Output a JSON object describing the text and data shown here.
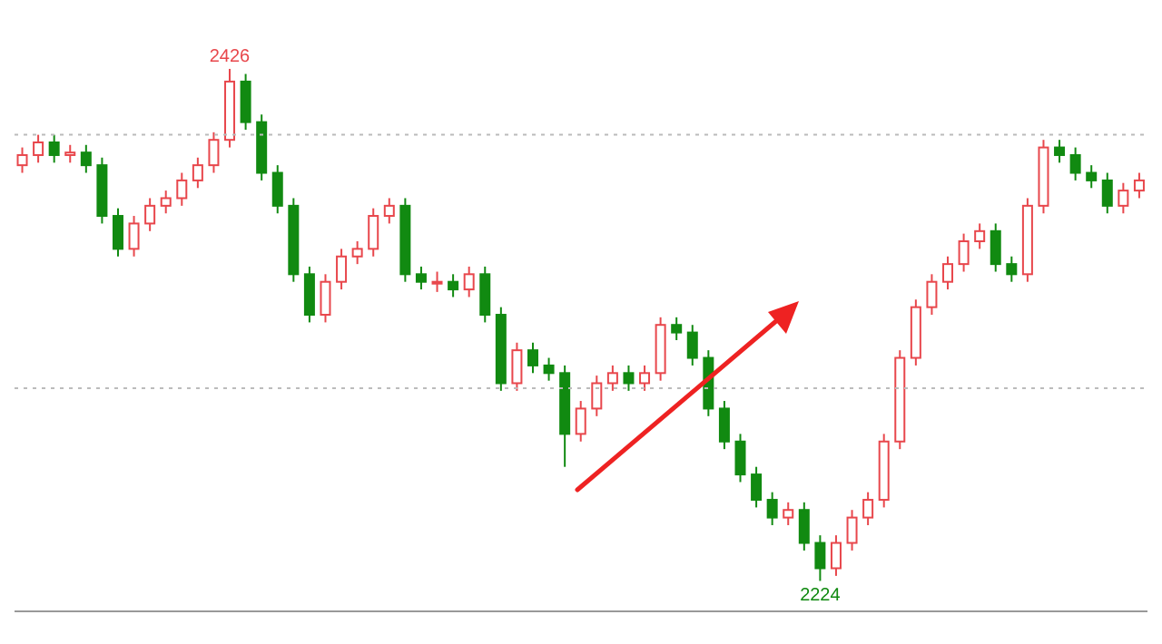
{
  "chart_data": {
    "type": "candlestick",
    "categories": [
      null,
      null,
      null,
      null,
      null,
      null,
      null,
      null,
      null,
      null,
      null,
      null,
      null,
      null,
      null,
      null,
      null,
      null,
      null,
      null,
      null,
      null,
      null,
      null,
      null,
      null,
      null,
      null,
      null,
      null,
      null,
      null,
      null,
      null,
      null,
      null,
      null,
      null,
      null,
      null,
      null,
      null,
      null,
      null,
      null,
      null,
      null,
      null,
      null,
      null,
      null,
      null,
      null,
      null,
      null,
      null,
      null,
      null,
      null,
      null,
      null,
      null,
      null,
      null,
      null,
      null,
      null,
      null,
      null,
      null,
      null
    ],
    "ohlc": [
      [
        2388,
        2395,
        2385,
        2392
      ],
      [
        2392,
        2400,
        2389,
        2397
      ],
      [
        2397,
        2400,
        2389,
        2392
      ],
      [
        2392,
        2396,
        2389,
        2393
      ],
      [
        2393,
        2396,
        2385,
        2388
      ],
      [
        2388,
        2391,
        2365,
        2368
      ],
      [
        2368,
        2371,
        2352,
        2355
      ],
      [
        2355,
        2368,
        2352,
        2365
      ],
      [
        2365,
        2375,
        2362,
        2372
      ],
      [
        2372,
        2378,
        2369,
        2375
      ],
      [
        2375,
        2385,
        2372,
        2382
      ],
      [
        2382,
        2391,
        2379,
        2388
      ],
      [
        2388,
        2401,
        2385,
        2398
      ],
      [
        2398,
        2426,
        2395,
        2421
      ],
      [
        2421,
        2424,
        2402,
        2405
      ],
      [
        2405,
        2408,
        2382,
        2385
      ],
      [
        2385,
        2388,
        2369,
        2372
      ],
      [
        2372,
        2375,
        2342,
        2345
      ],
      [
        2345,
        2348,
        2326,
        2329
      ],
      [
        2329,
        2345,
        2326,
        2342
      ],
      [
        2342,
        2355,
        2339,
        2352
      ],
      [
        2352,
        2358,
        2349,
        2355
      ],
      [
        2355,
        2371,
        2352,
        2368
      ],
      [
        2368,
        2375,
        2365,
        2372
      ],
      [
        2372,
        2375,
        2342,
        2345
      ],
      [
        2345,
        2348,
        2339,
        2342
      ],
      [
        2342,
        2346,
        2338,
        2342
      ],
      [
        2342,
        2345,
        2336,
        2339
      ],
      [
        2339,
        2348,
        2336,
        2345
      ],
      [
        2345,
        2348,
        2326,
        2329
      ],
      [
        2329,
        2332,
        2299,
        2302
      ],
      [
        2302,
        2318,
        2299,
        2315
      ],
      [
        2315,
        2318,
        2306,
        2309
      ],
      [
        2309,
        2312,
        2303,
        2306
      ],
      [
        2306,
        2309,
        2269,
        2282
      ],
      [
        2282,
        2295,
        2279,
        2292
      ],
      [
        2292,
        2305,
        2289,
        2302
      ],
      [
        2302,
        2309,
        2299,
        2306
      ],
      [
        2306,
        2309,
        2299,
        2302
      ],
      [
        2302,
        2309,
        2299,
        2306
      ],
      [
        2306,
        2328,
        2303,
        2325
      ],
      [
        2325,
        2328,
        2319,
        2322
      ],
      [
        2322,
        2325,
        2309,
        2312
      ],
      [
        2312,
        2315,
        2289,
        2292
      ],
      [
        2292,
        2295,
        2276,
        2279
      ],
      [
        2279,
        2282,
        2263,
        2266
      ],
      [
        2266,
        2269,
        2253,
        2256
      ],
      [
        2256,
        2259,
        2246,
        2249
      ],
      [
        2249,
        2255,
        2246,
        2252
      ],
      [
        2252,
        2255,
        2236,
        2239
      ],
      [
        2239,
        2242,
        2224,
        2229
      ],
      [
        2229,
        2242,
        2226,
        2239
      ],
      [
        2239,
        2252,
        2236,
        2249
      ],
      [
        2249,
        2259,
        2246,
        2256
      ],
      [
        2256,
        2282,
        2253,
        2279
      ],
      [
        2279,
        2315,
        2276,
        2312
      ],
      [
        2312,
        2335,
        2309,
        2332
      ],
      [
        2332,
        2345,
        2329,
        2342
      ],
      [
        2342,
        2352,
        2339,
        2349
      ],
      [
        2349,
        2361,
        2346,
        2358
      ],
      [
        2358,
        2365,
        2355,
        2362
      ],
      [
        2362,
        2365,
        2346,
        2349
      ],
      [
        2349,
        2352,
        2342,
        2345
      ],
      [
        2345,
        2375,
        2342,
        2372
      ],
      [
        2372,
        2398,
        2369,
        2395
      ],
      [
        2395,
        2398,
        2389,
        2392
      ],
      [
        2392,
        2395,
        2382,
        2385
      ],
      [
        2385,
        2388,
        2379,
        2382
      ],
      [
        2382,
        2385,
        2369,
        2372
      ],
      [
        2372,
        2381,
        2369,
        2378
      ],
      [
        2378,
        2385,
        2375,
        2382
      ]
    ],
    "yticks": [
      {
        "value": 2400,
        "label": null
      },
      {
        "value": 2300,
        "label": null
      }
    ],
    "grid": "y",
    "tick_labels": false,
    "annotations": [
      {
        "text": "2426",
        "y": 2426
      },
      {
        "text": "2224",
        "y": 2224
      }
    ]
  }
}
